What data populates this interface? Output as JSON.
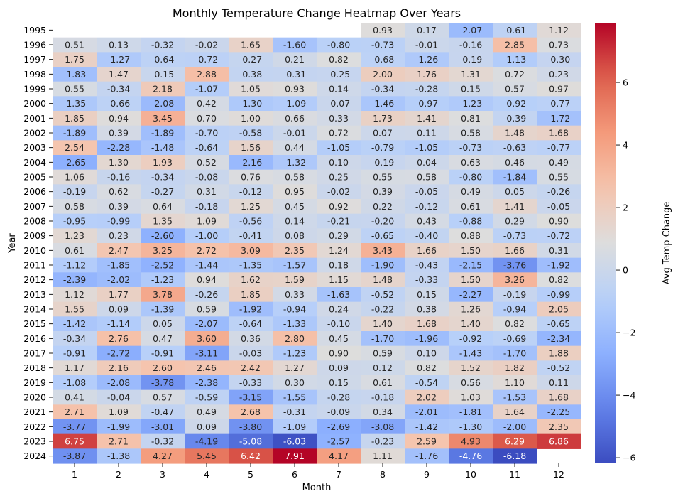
{
  "chart_data": {
    "type": "heatmap",
    "title": "Monthly Temperature Change Heatmap Over Years",
    "xlabel": "Month",
    "ylabel": "Year",
    "colorbar_label": "Avg Temp Change",
    "colormap": "coolwarm",
    "vmin": -6.18,
    "vmax": 7.91,
    "colorbar_ticks": [
      6,
      4,
      2,
      0,
      -2,
      -4,
      -6
    ],
    "colorbar_tick_labels": [
      "6",
      "4",
      "2",
      "0",
      "−2",
      "−4",
      "−6"
    ],
    "x": [
      "1",
      "2",
      "3",
      "4",
      "5",
      "6",
      "7",
      "8",
      "9",
      "10",
      "11",
      "12"
    ],
    "y": [
      "1995",
      "1996",
      "1997",
      "1998",
      "1999",
      "2000",
      "2001",
      "2002",
      "2003",
      "2004",
      "2005",
      "2006",
      "2007",
      "2008",
      "2009",
      "2010",
      "2011",
      "2012",
      "2013",
      "2014",
      "2015",
      "2016",
      "2017",
      "2018",
      "2019",
      "2020",
      "2021",
      "2022",
      "2023",
      "2024"
    ],
    "values": [
      [
        null,
        null,
        null,
        null,
        null,
        null,
        null,
        0.93,
        0.17,
        -2.07,
        -0.61,
        1.12
      ],
      [
        0.51,
        0.13,
        -0.32,
        -0.02,
        1.65,
        -1.6,
        -0.8,
        -0.73,
        -0.01,
        -0.16,
        2.85,
        0.73
      ],
      [
        1.75,
        -1.27,
        -0.64,
        -0.72,
        -0.27,
        0.21,
        0.82,
        -0.68,
        -1.26,
        -0.19,
        -1.13,
        -0.3
      ],
      [
        -1.83,
        1.47,
        -0.15,
        2.88,
        -0.38,
        -0.31,
        -0.25,
        2.0,
        1.76,
        1.31,
        0.72,
        0.23
      ],
      [
        0.55,
        -0.34,
        2.18,
        -1.07,
        1.05,
        0.93,
        0.14,
        -0.34,
        -0.28,
        0.15,
        0.57,
        0.97
      ],
      [
        -1.35,
        -0.66,
        -2.08,
        0.42,
        -1.3,
        -1.09,
        -0.07,
        -1.46,
        -0.97,
        -1.23,
        -0.92,
        -0.77
      ],
      [
        1.85,
        0.94,
        3.45,
        0.7,
        1.0,
        0.66,
        0.33,
        1.73,
        1.41,
        0.81,
        -0.39,
        -1.72
      ],
      [
        -1.89,
        0.39,
        -1.89,
        -0.7,
        -0.58,
        -0.01,
        0.72,
        0.07,
        0.11,
        0.58,
        1.48,
        1.68
      ],
      [
        2.54,
        -2.28,
        -1.48,
        -0.64,
        1.56,
        0.44,
        -1.05,
        -0.79,
        -1.05,
        -0.73,
        -0.63,
        -0.77
      ],
      [
        -2.65,
        1.3,
        1.93,
        0.52,
        -2.16,
        -1.32,
        0.1,
        -0.19,
        0.04,
        0.63,
        0.46,
        0.49
      ],
      [
        1.06,
        -0.16,
        -0.34,
        -0.08,
        0.76,
        0.58,
        0.25,
        0.55,
        0.58,
        -0.8,
        -1.84,
        0.55
      ],
      [
        -0.19,
        0.62,
        -0.27,
        0.31,
        -0.12,
        0.95,
        -0.02,
        0.39,
        -0.05,
        0.49,
        0.05,
        -0.26
      ],
      [
        0.58,
        0.39,
        0.64,
        -0.18,
        1.25,
        0.45,
        0.92,
        0.22,
        -0.12,
        0.61,
        1.41,
        -0.05
      ],
      [
        -0.95,
        -0.99,
        1.35,
        1.09,
        -0.56,
        0.14,
        -0.21,
        -0.2,
        0.43,
        -0.88,
        0.29,
        0.9
      ],
      [
        1.23,
        0.23,
        -2.6,
        -1.0,
        -0.41,
        0.08,
        0.29,
        -0.65,
        -0.4,
        0.88,
        -0.73,
        -0.72
      ],
      [
        0.61,
        2.47,
        3.25,
        2.72,
        3.09,
        2.35,
        1.24,
        3.43,
        1.66,
        1.5,
        1.66,
        0.31
      ],
      [
        -1.12,
        -1.85,
        -2.52,
        -1.44,
        -1.35,
        -1.57,
        0.18,
        -1.9,
        -0.43,
        -2.15,
        -3.76,
        -1.92
      ],
      [
        -2.39,
        -2.02,
        -1.23,
        0.94,
        1.62,
        1.59,
        1.15,
        1.48,
        -0.33,
        1.5,
        3.26,
        0.82
      ],
      [
        1.12,
        1.77,
        3.78,
        -0.26,
        1.85,
        0.33,
        -1.63,
        -0.52,
        0.15,
        -2.27,
        -0.19,
        -0.99
      ],
      [
        1.55,
        0.09,
        -1.39,
        0.59,
        -1.92,
        -0.94,
        0.24,
        -0.22,
        0.38,
        1.26,
        -0.94,
        2.05
      ],
      [
        -1.42,
        -1.14,
        0.05,
        -2.07,
        -0.64,
        -1.33,
        -0.1,
        1.4,
        1.68,
        1.4,
        0.82,
        -0.65
      ],
      [
        -0.34,
        2.76,
        0.47,
        3.6,
        0.36,
        2.8,
        0.45,
        -1.7,
        -1.96,
        -0.92,
        -0.69,
        -2.34
      ],
      [
        -0.91,
        -2.72,
        -0.91,
        -3.11,
        -0.03,
        -1.23,
        0.9,
        0.59,
        0.1,
        -1.43,
        -1.7,
        1.88
      ],
      [
        1.17,
        2.16,
        2.6,
        2.46,
        2.42,
        1.27,
        0.09,
        0.12,
        0.82,
        1.52,
        1.82,
        -0.52
      ],
      [
        -1.08,
        -2.08,
        -3.78,
        -2.38,
        -0.33,
        0.3,
        0.15,
        0.61,
        -0.54,
        0.56,
        1.1,
        0.11
      ],
      [
        0.41,
        -0.04,
        0.57,
        -0.59,
        -3.15,
        -1.55,
        -0.28,
        -0.18,
        2.02,
        1.03,
        -1.53,
        1.68
      ],
      [
        2.71,
        1.09,
        -0.47,
        0.49,
        2.68,
        -0.31,
        -0.09,
        0.34,
        -2.01,
        -1.81,
        1.64,
        -2.25
      ],
      [
        -3.77,
        -1.99,
        -3.01,
        0.09,
        -3.8,
        -1.09,
        -2.69,
        -3.08,
        -1.42,
        -1.3,
        -2.0,
        2.35
      ],
      [
        6.75,
        2.71,
        -0.32,
        -4.19,
        -5.08,
        -6.03,
        -2.57,
        -0.23,
        2.59,
        4.93,
        6.29,
        6.86
      ],
      [
        -3.87,
        -1.38,
        4.27,
        5.45,
        6.42,
        7.91,
        4.17,
        1.11,
        -1.76,
        -4.76,
        -6.18,
        null
      ]
    ]
  }
}
